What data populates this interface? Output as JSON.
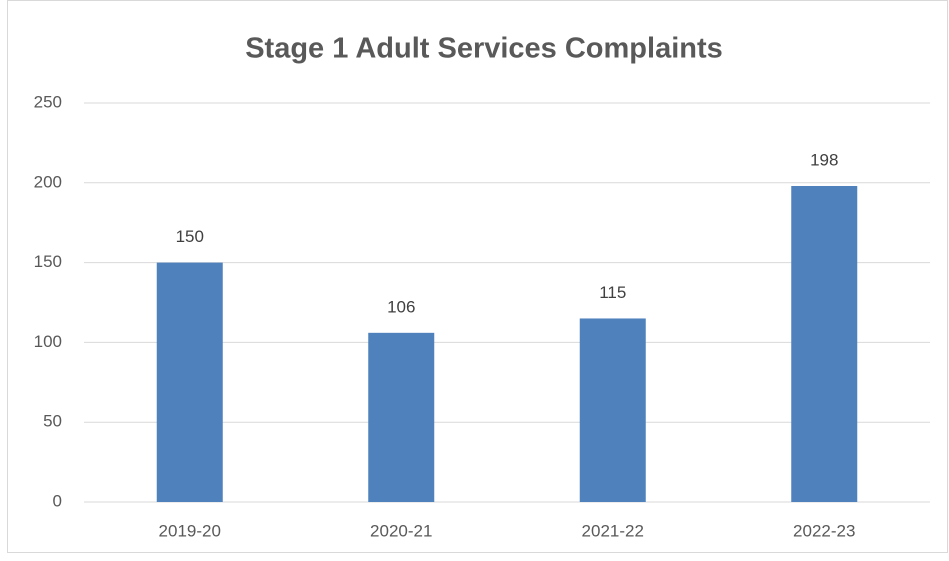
{
  "chart_data": {
    "type": "bar",
    "title": "Stage 1 Adult Services Complaints",
    "categories": [
      "2019-20",
      "2020-21",
      "2021-22",
      "2022-23"
    ],
    "values": [
      150,
      106,
      115,
      198
    ],
    "color": "#4f81bd",
    "ylim": [
      0,
      250
    ],
    "yticks": [
      0,
      50,
      100,
      150,
      200,
      250
    ],
    "grid": true,
    "data_labels": true
  }
}
